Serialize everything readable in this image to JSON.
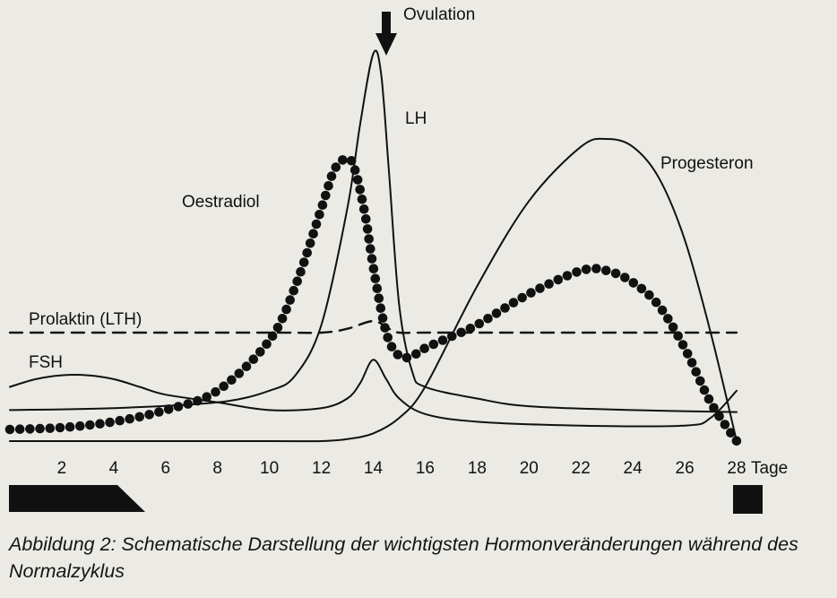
{
  "chart_data": {
    "type": "line",
    "title": "",
    "annotations": {
      "ovulation": "Ovulation",
      "ovulation_day": 14.5
    },
    "xlabel": "Tage",
    "ylabel": "",
    "xlim": [
      0,
      28
    ],
    "ylim": [
      0,
      100
    ],
    "x_ticks": [
      "2",
      "4",
      "6",
      "8",
      "10",
      "12",
      "14",
      "16",
      "18",
      "20",
      "22",
      "24",
      "26",
      "28"
    ],
    "grid": false,
    "legend": "none",
    "series": [
      {
        "name": "LH",
        "style": "solid",
        "x": [
          0,
          4,
          8,
          10,
          11,
          12,
          13,
          13.5,
          14,
          14.3,
          14.6,
          15,
          15.5,
          16,
          18,
          20,
          24,
          28
        ],
        "y": [
          8,
          8.5,
          10,
          13,
          17,
          30,
          60,
          82,
          100,
          95,
          70,
          35,
          18,
          14,
          11,
          9,
          8,
          7.5
        ]
      },
      {
        "name": "Oestradiol",
        "style": "dotted",
        "x": [
          0,
          2,
          4,
          6,
          8,
          10,
          11,
          12,
          12.5,
          13,
          13.3,
          13.7,
          14,
          14.5,
          15,
          15.5,
          16,
          17,
          18,
          20,
          22,
          23,
          24,
          25,
          26,
          27,
          28
        ],
        "y": [
          3,
          3.5,
          5,
          8,
          13,
          26,
          40,
          60,
          70,
          73,
          70,
          58,
          45,
          28,
          22,
          22,
          24,
          27,
          30,
          38,
          44,
          44,
          41,
          35,
          24,
          10,
          0
        ]
      },
      {
        "name": "Progesteron",
        "style": "solid",
        "x": [
          0,
          6,
          10,
          12,
          13,
          14,
          15,
          16,
          18,
          20,
          22,
          23,
          24,
          25,
          26,
          27,
          28
        ],
        "y": [
          0,
          0,
          0,
          0,
          0.5,
          2,
          6,
          14,
          40,
          62,
          76,
          78,
          76,
          68,
          52,
          28,
          0
        ]
      },
      {
        "name": "FSH",
        "style": "solid",
        "x": [
          0,
          1,
          2,
          3,
          4,
          5,
          6,
          8,
          10,
          12,
          13,
          13.5,
          14,
          14.5,
          15,
          16,
          18,
          22,
          26,
          27,
          28
        ],
        "y": [
          14,
          16,
          17,
          17,
          16,
          14,
          12,
          10,
          8,
          8.5,
          11,
          15,
          21,
          16,
          11,
          7,
          5,
          4,
          4,
          6,
          13
        ]
      },
      {
        "name": "Prolaktin (LTH)",
        "style": "dashed",
        "x": [
          0,
          10,
          12,
          13,
          14,
          14.6,
          15,
          16,
          20,
          28
        ],
        "y": [
          28,
          28,
          28,
          29,
          31,
          29,
          28,
          28,
          28,
          28
        ]
      }
    ]
  },
  "caption": "Abbildung 2: Schematische Darstellung der wichtigsten Hormonveränderungen während des Normalzyklus",
  "colors": {
    "ink": "#111111",
    "paper": "#ebeae5"
  }
}
